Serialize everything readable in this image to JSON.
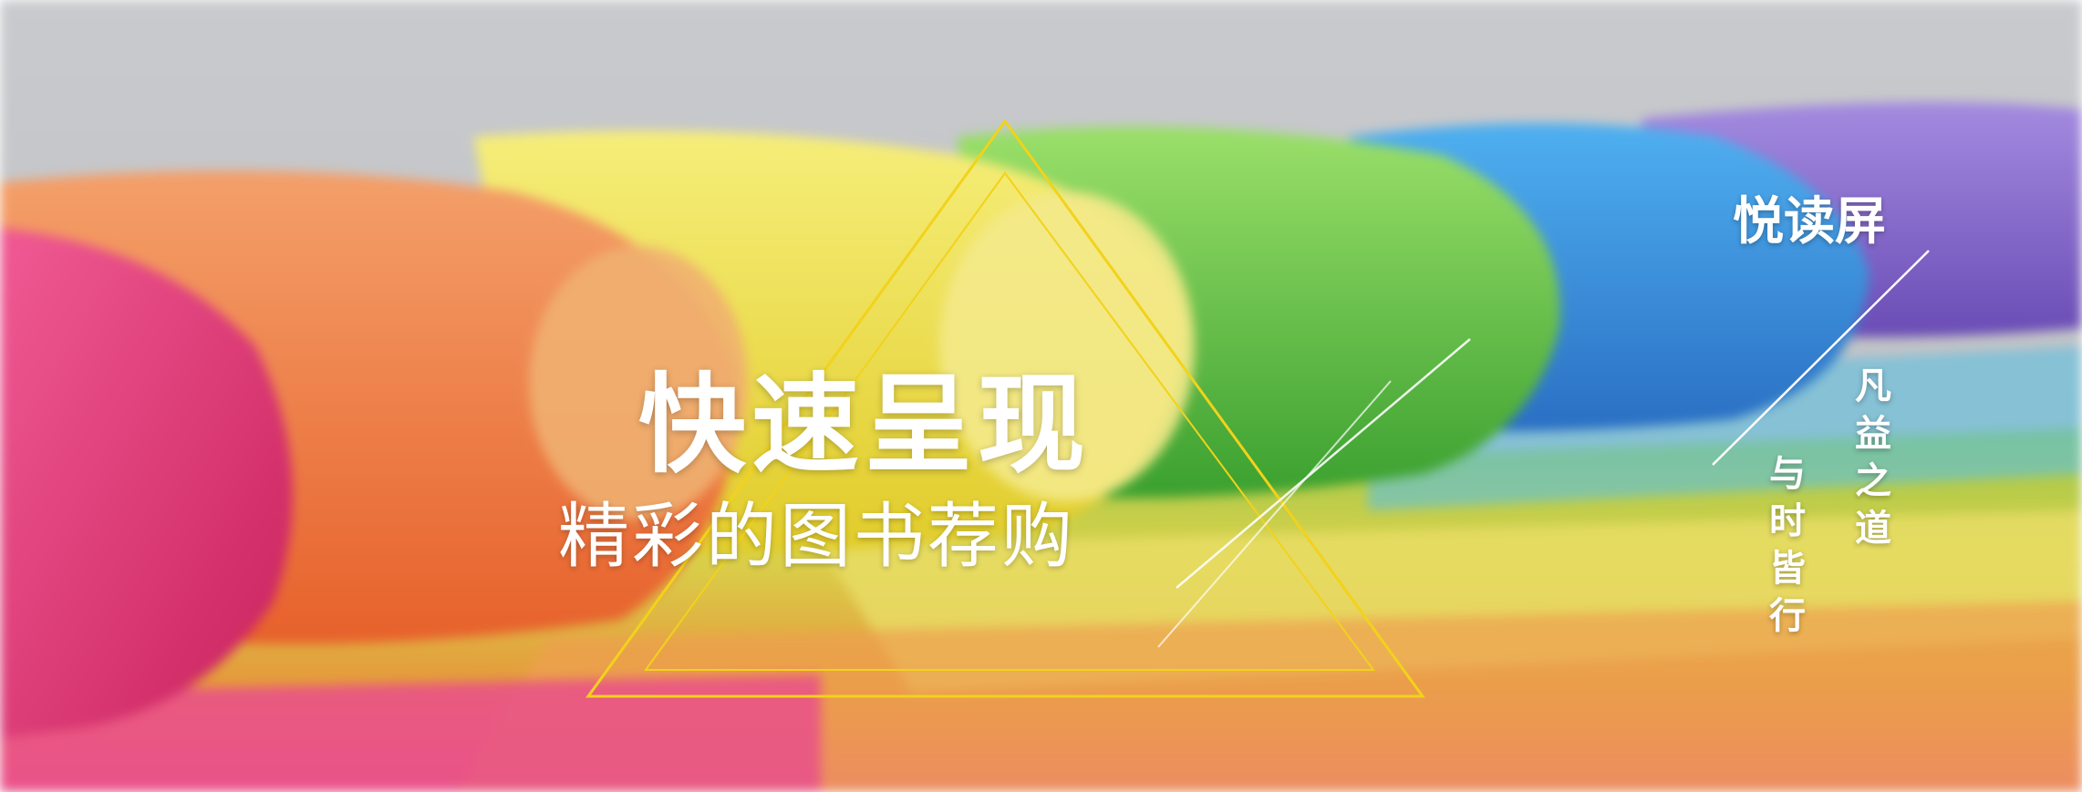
{
  "headline": "快速呈现",
  "subline": "精彩的图书荐购",
  "brand": "悦读屏",
  "slogan_right": "凡益之道",
  "slogan_left": "与时皆行",
  "colors": {
    "accent_line": "#f2d21b",
    "text": "#ffffff"
  }
}
